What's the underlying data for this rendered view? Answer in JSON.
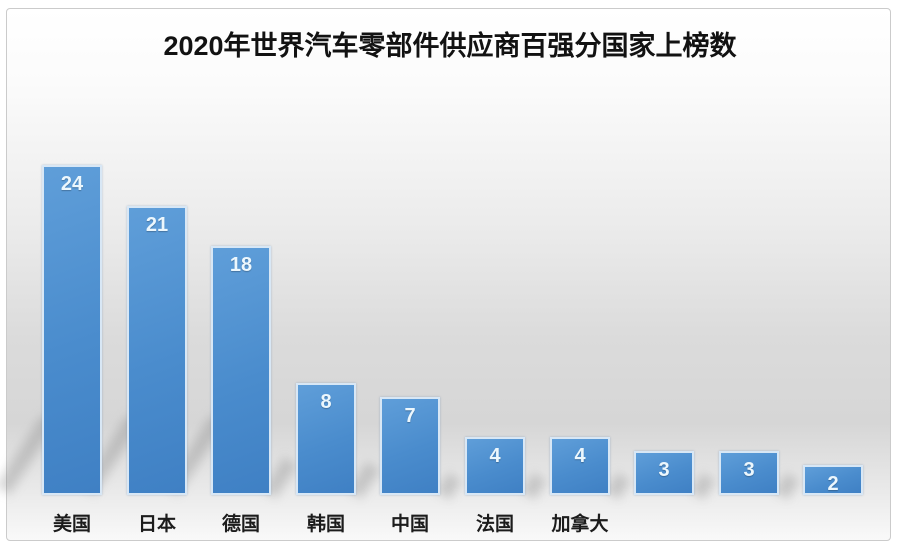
{
  "title": "2020年世界汽车零部件供应商百强分国家上榜数",
  "chart_data": {
    "type": "bar",
    "title": "2020年世界汽车零部件供应商百强分国家上榜数",
    "categories": [
      "美国",
      "日本",
      "德国",
      "韩国",
      "中国",
      "法国",
      "加拿大",
      "",
      "",
      ""
    ],
    "values": [
      24,
      21,
      18,
      8,
      7,
      4,
      4,
      3,
      3,
      2
    ],
    "xlabel": "",
    "ylabel": "",
    "ylim": [
      0,
      26
    ],
    "grid": "off",
    "axes_visible": false,
    "legend": "none",
    "value_labels": "inside-top of each bar, white bold",
    "colors": {
      "bar_fill": "#4a8ccd",
      "bar_border": "#d8e7f5",
      "value_label": "#ecf7fd",
      "category_label": "#1c1c1c",
      "title": "#121212",
      "background_top": "#ffffff",
      "background_mid": "#d6d6d6",
      "frame_border": "#cbcbcb"
    }
  }
}
